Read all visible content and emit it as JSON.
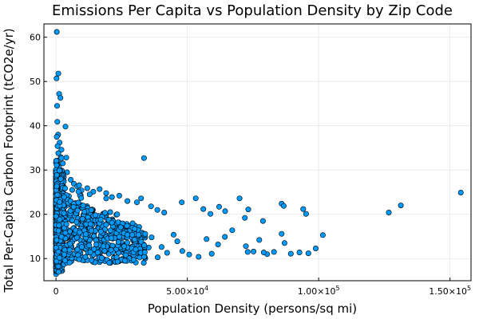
{
  "chart_data": {
    "type": "scatter",
    "title": "Emissions Per Capita vs Population Density by Zip Code",
    "xlabel": "Population Density (persons/sq mi)",
    "ylabel": "Total Per-Capita Carbon Footprint (tCO2e/yr)",
    "xlim": [
      -4600,
      158000
    ],
    "ylim": [
      5,
      63
    ],
    "grid": true,
    "legend": "none",
    "marker_color": "#009AFA",
    "x_ticks": [
      {
        "value": 0,
        "mantissa": "0",
        "exp": ""
      },
      {
        "value": 50000,
        "mantissa": "5.00×10",
        "exp": "4"
      },
      {
        "value": 100000,
        "mantissa": "1.00×10",
        "exp": "5"
      },
      {
        "value": 150000,
        "mantissa": "1.50×10",
        "exp": "5"
      }
    ],
    "y_ticks": [
      10,
      20,
      30,
      40,
      50,
      60
    ],
    "points": [
      [
        300,
        61.2
      ],
      [
        900,
        51.8
      ],
      [
        200,
        50.7
      ],
      [
        1200,
        47.2
      ],
      [
        1700,
        46.3
      ],
      [
        400,
        44.5
      ],
      [
        3600,
        39.8
      ],
      [
        500,
        40.9
      ],
      [
        800,
        38.0
      ],
      [
        300,
        37.5
      ],
      [
        1400,
        36.2
      ],
      [
        600,
        35.4
      ],
      [
        2100,
        34.6
      ],
      [
        900,
        33.8
      ],
      [
        1800,
        32.9
      ],
      [
        3900,
        32.8
      ],
      [
        700,
        32.1
      ],
      [
        2600,
        31.5
      ],
      [
        33500,
        32.7
      ],
      [
        1100,
        30.7
      ],
      [
        4200,
        29.5
      ],
      [
        2300,
        29.0
      ],
      [
        5600,
        27.8
      ],
      [
        3000,
        28.4
      ],
      [
        6800,
        26.9
      ],
      [
        8100,
        26.3
      ],
      [
        9700,
        25.4
      ],
      [
        11900,
        25.9
      ],
      [
        14200,
        25.1
      ],
      [
        16600,
        25.7
      ],
      [
        12800,
        24.5
      ],
      [
        19100,
        24.8
      ],
      [
        21300,
        23.9
      ],
      [
        24100,
        24.2
      ],
      [
        4900,
        24.1
      ],
      [
        27200,
        23.0
      ],
      [
        30800,
        22.7
      ],
      [
        32400,
        23.6
      ],
      [
        36200,
        21.8
      ],
      [
        38600,
        21.0
      ],
      [
        41200,
        20.4
      ],
      [
        47900,
        22.7
      ],
      [
        53200,
        23.6
      ],
      [
        56100,
        21.2
      ],
      [
        58800,
        20.1
      ],
      [
        62100,
        21.7
      ],
      [
        64400,
        20.7
      ],
      [
        69900,
        23.6
      ],
      [
        73200,
        21.1
      ],
      [
        71900,
        19.2
      ],
      [
        78800,
        18.5
      ],
      [
        85900,
        22.4
      ],
      [
        86700,
        21.9
      ],
      [
        94100,
        21.2
      ],
      [
        95200,
        20.1
      ],
      [
        126700,
        20.4
      ],
      [
        131300,
        22.0
      ],
      [
        154100,
        24.9
      ],
      [
        101600,
        15.3
      ],
      [
        98900,
        12.3
      ],
      [
        96100,
        11.2
      ],
      [
        92700,
        11.4
      ],
      [
        89400,
        11.1
      ],
      [
        87000,
        13.5
      ],
      [
        85900,
        15.6
      ],
      [
        83000,
        11.5
      ],
      [
        80400,
        11.0
      ],
      [
        79100,
        11.4
      ],
      [
        75200,
        11.6
      ],
      [
        73000,
        11.5
      ],
      [
        72300,
        12.8
      ],
      [
        77400,
        14.2
      ],
      [
        67100,
        16.4
      ],
      [
        64300,
        14.9
      ],
      [
        61700,
        13.2
      ],
      [
        59300,
        11.1
      ],
      [
        57300,
        14.4
      ],
      [
        54300,
        10.4
      ],
      [
        50700,
        10.9
      ],
      [
        48100,
        11.7
      ],
      [
        46200,
        13.9
      ],
      [
        44800,
        15.4
      ],
      [
        42300,
        11.3
      ],
      [
        40200,
        12.6
      ],
      [
        38700,
        10.3
      ],
      [
        36400,
        14.8
      ],
      [
        35300,
        12.5
      ],
      [
        33600,
        11.9
      ],
      [
        31800,
        14.1
      ],
      [
        30100,
        10.8
      ],
      [
        28700,
        12.6
      ],
      [
        27300,
        15.7
      ],
      [
        25800,
        11.3
      ],
      [
        24200,
        13.4
      ],
      [
        22700,
        9.8
      ],
      [
        21400,
        16.2
      ],
      [
        19900,
        12.2
      ],
      [
        18300,
        14.6
      ],
      [
        16900,
        10.5
      ],
      [
        15600,
        13.1
      ],
      [
        14200,
        18.5
      ],
      [
        13100,
        11.7
      ],
      [
        11900,
        15.4
      ],
      [
        10800,
        9.6
      ],
      [
        9700,
        17.7
      ],
      [
        8800,
        12.9
      ],
      [
        7900,
        20.1
      ],
      [
        7100,
        10.9
      ],
      [
        6300,
        16.1
      ],
      [
        5600,
        13.3
      ],
      [
        4900,
        22.7
      ],
      [
        4300,
        9.9
      ],
      [
        3700,
        18.8
      ],
      [
        3200,
        11.6
      ],
      [
        2800,
        26.4
      ],
      [
        2400,
        14.8
      ],
      [
        2100,
        8.6
      ],
      [
        1800,
        19.8
      ],
      [
        1500,
        12.3
      ],
      [
        1300,
        28.9
      ],
      [
        1100,
        9.3
      ],
      [
        900,
        23.5
      ],
      [
        700,
        16.7
      ],
      [
        600,
        7.6
      ],
      [
        500,
        31.2
      ],
      [
        400,
        20.9
      ],
      [
        300,
        13.5
      ],
      [
        200,
        6.9
      ],
      [
        150,
        26.1
      ],
      [
        100,
        10.2
      ],
      [
        80,
        18.3
      ],
      [
        60,
        8.4
      ],
      [
        50,
        24.4
      ],
      [
        40,
        15.2
      ],
      [
        30,
        29.8
      ],
      [
        20,
        12.1
      ],
      [
        10,
        6.5
      ],
      [
        0,
        21.6
      ]
    ]
  }
}
